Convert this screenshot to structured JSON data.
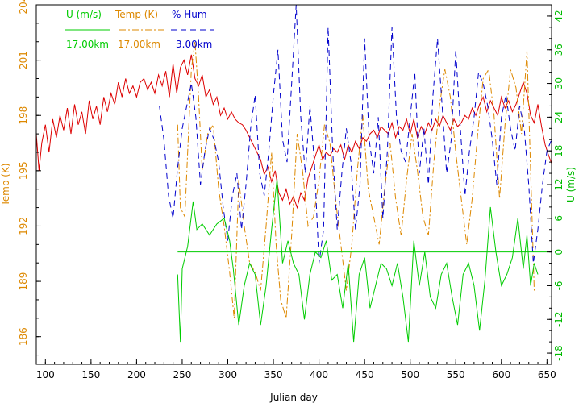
{
  "chart_data": {
    "type": "line",
    "xlabel": "Julian day",
    "y_left_label": "Temp (K)",
    "y_right_label": "U (m/s)",
    "xlim": [
      90,
      655
    ],
    "ylim_left": [
      184.5,
      204
    ],
    "ylim_right": [
      -20,
      44
    ],
    "x_ticks": [
      100,
      150,
      200,
      250,
      300,
      350,
      400,
      450,
      500,
      550,
      600,
      650
    ],
    "y_left_ticks": [
      186,
      189,
      192,
      195,
      198,
      201,
      204
    ],
    "y_right_ticks": [
      -18,
      -12,
      -6,
      0,
      6,
      12,
      18,
      24,
      30,
      36,
      42
    ],
    "colors": {
      "temp": "#dd0000",
      "temp_dashdot": "#dd8800",
      "hum": "#0000cc",
      "wind": "#00cc00",
      "left_axis_text": "#dd8800",
      "right_axis_text": "#00bb00",
      "frame": "#000000"
    },
    "legend": [
      {
        "key": "wind",
        "name": "U (m/s)",
        "height": "17.00km",
        "color": "#00cc00",
        "style": "solid"
      },
      {
        "key": "temp_dashdot",
        "name": "Temp (K)",
        "height": "17.00km",
        "color": "#dd8800",
        "style": "dashdot"
      },
      {
        "key": "hum",
        "name": "% Hum",
        "height": "3.00km",
        "color": "#0000cc",
        "style": "dashed"
      }
    ],
    "series": [
      {
        "key": "temp",
        "axis": "left",
        "color": "#dd0000",
        "style": "solid",
        "x": [
          90,
          93,
          96,
          100,
          104,
          108,
          112,
          116,
          120,
          124,
          128,
          132,
          136,
          140,
          144,
          148,
          152,
          156,
          160,
          164,
          168,
          172,
          176,
          180,
          184,
          188,
          192,
          196,
          200,
          204,
          208,
          212,
          216,
          220,
          224,
          228,
          232,
          236,
          240,
          244,
          248,
          252,
          256,
          260,
          264,
          268,
          272,
          276,
          280,
          284,
          288,
          292,
          296,
          300,
          304,
          308,
          312,
          316,
          320,
          324,
          328,
          332,
          336,
          340,
          344,
          348,
          352,
          356,
          360,
          364,
          368,
          372,
          376,
          380,
          384,
          388,
          392,
          396,
          400,
          404,
          408,
          412,
          416,
          420,
          424,
          428,
          432,
          436,
          440,
          444,
          448,
          452,
          456,
          460,
          464,
          468,
          472,
          476,
          480,
          484,
          488,
          492,
          496,
          500,
          504,
          508,
          512,
          516,
          520,
          524,
          528,
          532,
          536,
          540,
          544,
          548,
          552,
          556,
          560,
          564,
          568,
          572,
          576,
          580,
          584,
          588,
          592,
          596,
          600,
          604,
          608,
          612,
          616,
          620,
          624,
          628,
          632,
          636,
          640,
          644,
          648,
          652,
          655
        ],
        "y": [
          197.0,
          195.0,
          196.5,
          197.5,
          196.0,
          197.8,
          196.8,
          198.0,
          197.2,
          198.4,
          197.0,
          198.6,
          197.5,
          198.2,
          197.0,
          198.8,
          197.8,
          198.5,
          197.5,
          199.0,
          198.2,
          199.2,
          198.6,
          199.8,
          199.0,
          200.0,
          199.2,
          199.6,
          199.0,
          199.8,
          200.0,
          199.4,
          199.8,
          199.2,
          200.2,
          199.6,
          200.4,
          199.0,
          200.8,
          199.2,
          200.6,
          201.0,
          200.2,
          201.3,
          200.0,
          199.6,
          200.2,
          199.0,
          199.4,
          198.6,
          199.0,
          198.0,
          198.4,
          197.8,
          198.2,
          197.8,
          197.6,
          197.5,
          197.2,
          196.8,
          196.4,
          196.0,
          195.6,
          194.8,
          195.2,
          194.4,
          195.0,
          193.8,
          193.4,
          194.0,
          193.2,
          193.6,
          193.0,
          193.8,
          193.4,
          194.6,
          195.2,
          195.8,
          196.4,
          195.6,
          196.0,
          195.8,
          196.2,
          196.0,
          196.4,
          195.6,
          196.4,
          196.0,
          196.6,
          196.2,
          196.8,
          196.6,
          197.0,
          197.2,
          196.8,
          197.4,
          197.2,
          197.0,
          197.6,
          196.8,
          197.4,
          197.2,
          197.8,
          197.0,
          197.8,
          196.8,
          197.4,
          197.0,
          197.6,
          197.2,
          197.8,
          197.4,
          198.0,
          197.6,
          197.2,
          197.8,
          197.4,
          197.6,
          198.0,
          197.8,
          198.4,
          198.0,
          198.6,
          199.0,
          198.2,
          198.8,
          198.4,
          198.0,
          199.0,
          198.4,
          198.8,
          198.2,
          198.6,
          199.2,
          199.8,
          199.2,
          198.0,
          197.6,
          198.6,
          197.4,
          196.4,
          195.8,
          195.4
        ]
      },
      {
        "key": "temp_dashdot",
        "axis": "left",
        "color": "#dd8800",
        "style": "dashdot",
        "x": [
          245,
          248,
          253,
          256,
          260,
          264,
          268,
          272,
          278,
          284,
          290,
          296,
          302,
          307,
          312,
          318,
          324,
          330,
          336,
          342,
          348,
          353,
          358,
          364,
          370,
          376,
          382,
          388,
          394,
          400,
          406,
          412,
          418,
          424,
          430,
          436,
          442,
          448,
          454,
          460,
          466,
          472,
          478,
          484,
          490,
          496,
          502,
          508,
          514,
          520,
          526,
          532,
          538,
          544,
          550,
          556,
          562,
          568,
          574,
          580,
          586,
          592,
          598,
          604,
          610,
          616,
          622,
          628,
          633,
          636
        ],
        "y": [
          197.5,
          193.0,
          192.5,
          196.0,
          200.5,
          202.0,
          199.0,
          195.0,
          197.0,
          197.5,
          194.0,
          192.0,
          189.5,
          187.0,
          194.5,
          192.0,
          190.0,
          189.5,
          188.5,
          192.0,
          196.0,
          191.0,
          188.0,
          187.0,
          191.5,
          197.0,
          195.0,
          192.0,
          192.5,
          194.5,
          197.5,
          196.5,
          193.5,
          191.0,
          188.5,
          191.0,
          195.0,
          198.0,
          194.0,
          192.5,
          191.0,
          194.0,
          196.5,
          193.5,
          191.5,
          194.5,
          197.0,
          195.0,
          192.5,
          191.5,
          195.5,
          198.5,
          200.5,
          199.0,
          196.0,
          193.5,
          191.0,
          193.5,
          197.0,
          200.0,
          200.5,
          198.0,
          193.5,
          197.5,
          200.5,
          199.5,
          197.0,
          201.5,
          193.5,
          188.5
        ]
      },
      {
        "key": "hum",
        "axis": "right",
        "color": "#0000cc",
        "style": "dashed",
        "x": [
          225,
          230,
          235,
          240,
          245,
          250,
          255,
          260,
          265,
          270,
          275,
          280,
          285,
          290,
          295,
          300,
          305,
          310,
          315,
          320,
          325,
          330,
          335,
          340,
          345,
          350,
          355,
          360,
          365,
          370,
          375,
          380,
          385,
          390,
          395,
          400,
          405,
          410,
          415,
          420,
          425,
          430,
          435,
          440,
          445,
          450,
          455,
          460,
          465,
          470,
          475,
          480,
          485,
          490,
          495,
          500,
          505,
          510,
          515,
          520,
          525,
          530,
          535,
          540,
          545,
          550,
          555,
          560,
          565,
          570,
          575,
          580,
          585,
          590,
          595,
          600,
          605,
          610,
          615,
          620,
          625,
          630,
          635,
          640,
          645,
          650,
          655
        ],
        "y": [
          26.0,
          20.0,
          10.0,
          6.0,
          15.0,
          22.0,
          26.0,
          30.0,
          24.0,
          12.0,
          18.0,
          22.0,
          20.0,
          16.0,
          8.0,
          2.0,
          10.0,
          14.0,
          4.0,
          12.0,
          22.0,
          28.0,
          14.0,
          10.0,
          18.0,
          28.0,
          36.0,
          20.0,
          16.0,
          30.0,
          44.0,
          24.0,
          14.0,
          26.0,
          16.0,
          -2.0,
          4.0,
          40.0,
          18.0,
          4.0,
          14.0,
          22.0,
          16.0,
          4.0,
          12.0,
          38.0,
          20.0,
          14.0,
          24.0,
          6.0,
          18.0,
          40.0,
          24.0,
          18.0,
          16.0,
          24.0,
          32.0,
          14.0,
          22.0,
          12.0,
          28.0,
          38.0,
          26.0,
          14.0,
          20.0,
          36.0,
          22.0,
          10.0,
          18.0,
          24.0,
          32.0,
          30.0,
          26.0,
          20.0,
          12.0,
          24.0,
          28.0,
          22.0,
          18.0,
          26.0,
          22.0,
          12.0,
          -2.0,
          4.0,
          12.0,
          18.0,
          20.0
        ]
      },
      {
        "key": "wind",
        "axis": "right",
        "color": "#00cc00",
        "style": "solid",
        "x": [
          245,
          248,
          250,
          256,
          262,
          266,
          272,
          280,
          288,
          296,
          302,
          306,
          312,
          318,
          324,
          330,
          336,
          342,
          348,
          354,
          360,
          366,
          372,
          378,
          384,
          390,
          396,
          402,
          408,
          414,
          420,
          426,
          432,
          438,
          444,
          450,
          456,
          462,
          468,
          474,
          480,
          486,
          492,
          498,
          504,
          510,
          516,
          522,
          528,
          534,
          540,
          546,
          552,
          558,
          564,
          570,
          576,
          582,
          588,
          594,
          600,
          606,
          612,
          618,
          624,
          628,
          632,
          636,
          640
        ],
        "y": [
          -4.0,
          -16.0,
          -3.0,
          1.0,
          9.0,
          4.0,
          5.0,
          3.0,
          5.0,
          6.0,
          2.0,
          -3.0,
          -13.0,
          -6.0,
          -2.0,
          -4.0,
          -13.0,
          -6.0,
          4.0,
          13.0,
          -2.0,
          2.0,
          -2.0,
          -4.0,
          -12.0,
          -4.0,
          0.0,
          -1.0,
          2.0,
          -5.0,
          -4.0,
          -10.0,
          -2.0,
          -16.0,
          -4.0,
          -1.0,
          -10.0,
          -6.0,
          -2.0,
          -3.0,
          -6.0,
          -2.0,
          -8.0,
          -16.0,
          2.0,
          -6.0,
          0.0,
          -8.0,
          -10.0,
          -4.0,
          -2.0,
          -8.0,
          -13.0,
          -4.0,
          -2.0,
          -6.0,
          -14.0,
          -5.0,
          8.0,
          0.0,
          -6.0,
          -4.0,
          -1.0,
          6.0,
          -3.0,
          3.0,
          -6.0,
          -2.0,
          -4.0
        ]
      },
      {
        "key": "wind_zero",
        "axis": "right",
        "color": "#00cc00",
        "style": "solid",
        "x": [
          245,
          655
        ],
        "y": [
          0,
          0
        ]
      }
    ]
  }
}
